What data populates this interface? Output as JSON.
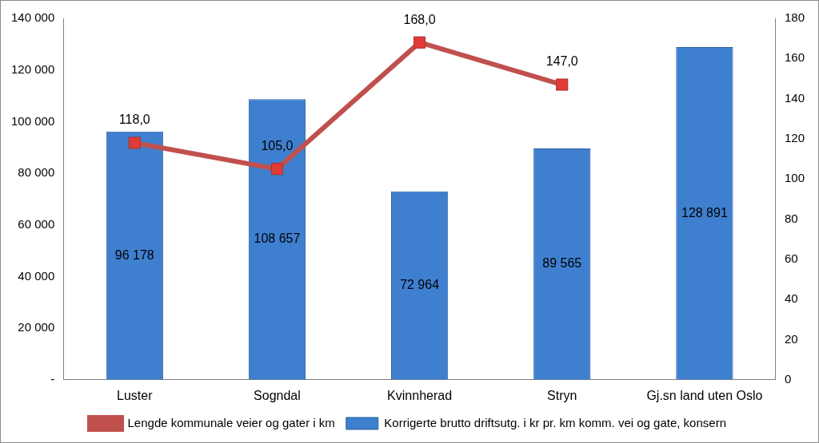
{
  "chart_data": {
    "type": "bar",
    "categories": [
      "Luster",
      "Sogndal",
      "Kvinnherad",
      "Stryn",
      "Gj.sn land uten Oslo"
    ],
    "series": [
      {
        "name": "Korrigerte brutto driftsutg. i kr pr. km komm. vei og gate, konsern",
        "type": "bar",
        "color": "#3f7fd0",
        "values": [
          96178,
          108657,
          72964,
          89565,
          128891
        ],
        "value_labels": [
          "96 178",
          "108 657",
          "72 964",
          "89 565",
          "128 891"
        ]
      },
      {
        "name": "Lengde kommunale veier og gater i km",
        "type": "line",
        "color": "#c0504d",
        "marker": "square",
        "axis": "y2",
        "values": [
          118,
          105,
          168,
          147,
          null
        ],
        "value_labels": [
          "118,0",
          "105,0",
          "168,0",
          "147,0",
          null
        ]
      }
    ],
    "ylim": [
      0,
      140000
    ],
    "yticks": [
      {
        "value": 0,
        "label": "-"
      },
      {
        "value": 20000,
        "label": "20 000"
      },
      {
        "value": 40000,
        "label": "40 000"
      },
      {
        "value": 60000,
        "label": "60 000"
      },
      {
        "value": 80000,
        "label": "80 000"
      },
      {
        "value": 100000,
        "label": "100 000"
      },
      {
        "value": 120000,
        "label": "120 000"
      },
      {
        "value": 140000,
        "label": "140 000"
      }
    ],
    "y2lim": [
      0,
      180
    ],
    "y2ticks": [
      0,
      20,
      40,
      60,
      80,
      100,
      120,
      140,
      160,
      180
    ],
    "legend": "bottom",
    "data_labels": true,
    "grid": false
  }
}
